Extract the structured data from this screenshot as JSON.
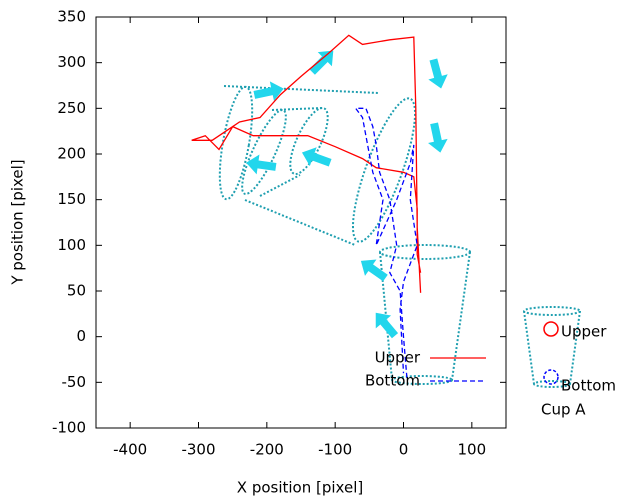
{
  "chart_data": {
    "type": "line",
    "x_label": "X position [pixel]",
    "y_label": "Y position [pixel]",
    "xlim": [
      -450,
      150
    ],
    "ylim": [
      -100,
      350
    ],
    "xticks": [
      -400,
      -300,
      -200,
      -100,
      0,
      100
    ],
    "yticks": [
      -100,
      -50,
      0,
      50,
      100,
      150,
      200,
      250,
      300,
      350
    ],
    "legend": "bottom right",
    "series": [
      {
        "name": "Upper",
        "color": "#ff0000",
        "dashed": false,
        "x": [
          25,
          20,
          18,
          15,
          -20,
          -60,
          -80,
          -110,
          -150,
          -180,
          -210,
          -240,
          -260,
          -280,
          -310,
          -290,
          -270,
          -250,
          -220,
          -180,
          -140,
          -100,
          -60,
          -40,
          0,
          15,
          20,
          20,
          25
        ],
        "values": [
          48,
          120,
          250,
          328,
          325,
          320,
          330,
          310,
          285,
          265,
          240,
          235,
          225,
          215,
          215,
          220,
          205,
          230,
          220,
          220,
          220,
          208,
          195,
          185,
          180,
          175,
          140,
          90,
          70
        ]
      },
      {
        "name": "Bottom",
        "color": "#0000ff",
        "dashed": true,
        "x": [
          5,
          0,
          -5,
          -20,
          -10,
          -20,
          -35,
          -40,
          -45,
          -55,
          -70,
          -60,
          -50,
          -45,
          -30,
          -40,
          -10,
          10,
          15,
          10,
          20,
          10,
          0,
          -5,
          0
        ],
        "values": [
          -45,
          0,
          50,
          70,
          100,
          150,
          180,
          210,
          230,
          250,
          250,
          240,
          200,
          180,
          150,
          100,
          150,
          190,
          210,
          150,
          100,
          80,
          60,
          30,
          -40
        ]
      }
    ],
    "cup_diagram": {
      "upper": "Upper",
      "bottom": "Bottom",
      "caption": "Cup A"
    }
  }
}
